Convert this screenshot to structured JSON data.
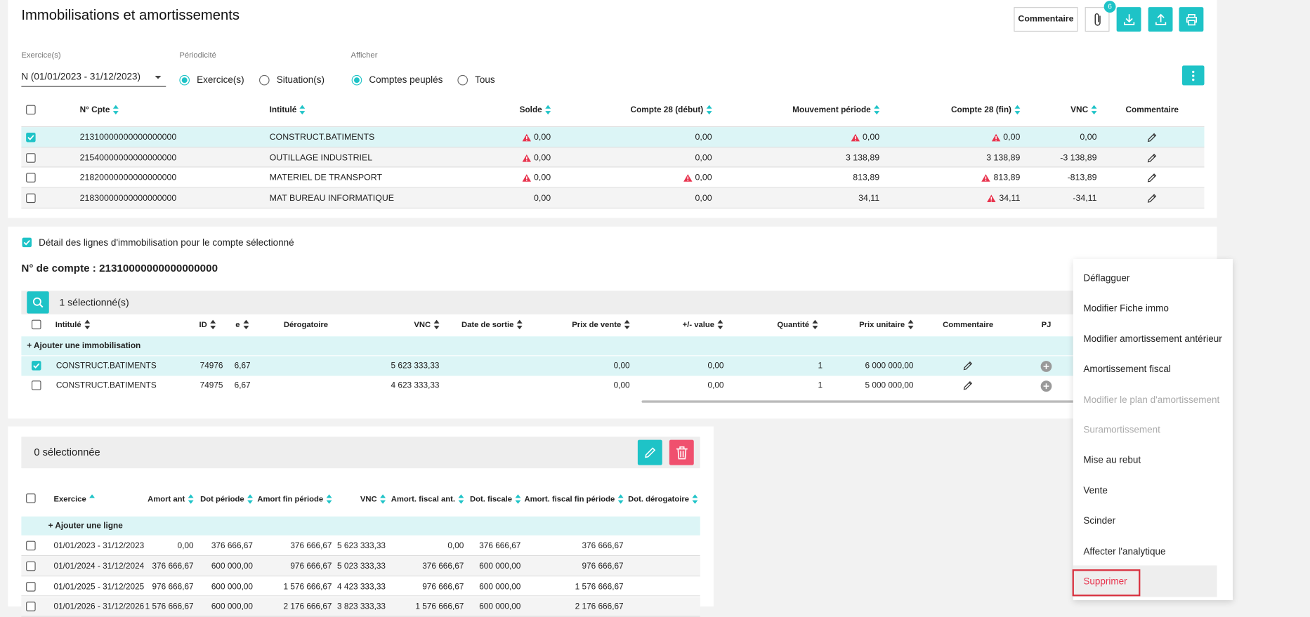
{
  "header": {
    "title": "Immobilisations et amortissements",
    "comment_button": "Commentaire",
    "attachments_count": 6
  },
  "filters": {
    "exercice": {
      "label": "Exercice(s)",
      "value": "N (01/01/2023 - 31/12/2023)"
    },
    "periodicite": {
      "label": "Périodicité",
      "options": [
        "Exercice(s)",
        "Situation(s)"
      ],
      "selected": 0
    },
    "afficher": {
      "label": "Afficher",
      "options": [
        "Comptes peuplés",
        "Tous"
      ],
      "selected": 0
    }
  },
  "accounts_table": {
    "columns": [
      "N° Cpte",
      "Intitulé",
      "Solde",
      "Compte 28 (début)",
      "Mouvement période",
      "Compte 28 (fin)",
      "VNC",
      "Commentaire"
    ],
    "selected_row": 0,
    "rows": [
      {
        "account": "21310000000000000000",
        "label": "CONSTRUCT.BATIMENTS",
        "amounts": [
          {
            "text": "0,00",
            "warning": true
          },
          {
            "text": "0,00",
            "warning": false
          },
          {
            "text": "0,00",
            "warning": true
          },
          {
            "text": "0,00",
            "warning": true
          },
          {
            "text": "0,00",
            "warning": false
          }
        ]
      },
      {
        "account": "21540000000000000000",
        "label": "OUTILLAGE INDUSTRIEL",
        "amounts": [
          {
            "text": "0,00",
            "warning": true
          },
          {
            "text": "0,00",
            "warning": false
          },
          {
            "text": "3 138,89",
            "warning": false
          },
          {
            "text": "3 138,89",
            "warning": false
          },
          {
            "text": "-3 138,89",
            "warning": false
          }
        ]
      },
      {
        "account": "21820000000000000000",
        "label": "MATERIEL DE TRANSPORT",
        "amounts": [
          {
            "text": "0,00",
            "warning": true
          },
          {
            "text": "0,00",
            "warning": true
          },
          {
            "text": "813,89",
            "warning": false
          },
          {
            "text": "813,89",
            "warning": true
          },
          {
            "text": "-813,89",
            "warning": false
          }
        ]
      },
      {
        "account": "21830000000000000000",
        "label": "MAT BUREAU INFORMATIQUE",
        "amounts": [
          {
            "text": "0,00",
            "warning": false
          },
          {
            "text": "0,00",
            "warning": false
          },
          {
            "text": "34,11",
            "warning": false
          },
          {
            "text": "34,11",
            "warning": true
          },
          {
            "text": "-34,11",
            "warning": false
          }
        ]
      }
    ]
  },
  "detail": {
    "checkbox_label": "Détail des lignes d'immobilisation pour le compte sélectionné",
    "account_title": "N° de compte : 21310000000000000000",
    "selection": "1 sélectionné(s)",
    "columns": [
      "Intitulé",
      "ID",
      "e",
      "Dérogatoire",
      "VNC",
      "Date de sortie",
      "Prix de vente",
      "+/- value",
      "Quantité",
      "Prix unitaire",
      "Commentaire",
      "PJ"
    ],
    "add_row": "+ Ajouter une immobilisation",
    "rows": [
      {
        "checked": true,
        "label": "CONSTRUCT.BATIMENTS",
        "id": "74976",
        "e": "6,67",
        "vnc": "5 623 333,33",
        "prix_vente": "0,00",
        "plus_value": "0,00",
        "quantite": "1",
        "prix_unitaire": "6 000 000,00"
      },
      {
        "checked": false,
        "label": "CONSTRUCT.BATIMENTS",
        "id": "74975",
        "e": "6,67",
        "vnc": "4 623 333,33",
        "prix_vente": "0,00",
        "plus_value": "0,00",
        "quantite": "1",
        "prix_unitaire": "5 000 000,00"
      }
    ]
  },
  "menu": {
    "items": [
      {
        "text": "Déflagguer",
        "disabled": false
      },
      {
        "text": "Modifier Fiche immo",
        "disabled": false
      },
      {
        "text": "Modifier amortissement antérieur",
        "disabled": false
      },
      {
        "text": "Amortissement fiscal",
        "disabled": false
      },
      {
        "text": "Modifier le plan d'amortissement",
        "disabled": true
      },
      {
        "text": "Suramortissement",
        "disabled": true
      },
      {
        "text": "Mise au rebut",
        "disabled": false
      },
      {
        "text": "Vente",
        "disabled": false
      },
      {
        "text": "Scinder",
        "disabled": false
      },
      {
        "text": "Affecter l'analytique",
        "disabled": false
      },
      {
        "text": "Supprimer",
        "disabled": false,
        "danger": true
      }
    ]
  },
  "schedule": {
    "selection": "0 sélectionnée",
    "columns": [
      "Exercice",
      "Amort ant",
      "Dot période",
      "Amort fin période",
      "VNC",
      "Amort. fiscal ant.",
      "Dot. fiscale",
      "Amort. fiscal fin période",
      "Dot. dérogatoire"
    ],
    "add_row": "+ Ajouter une ligne",
    "rows": [
      [
        "01/01/2023 - 31/12/2023",
        "0,00",
        "376 666,67",
        "376 666,67",
        "5 623 333,33",
        "0,00",
        "376 666,67",
        "376 666,67"
      ],
      [
        "01/01/2024 - 31/12/2024",
        "376 666,67",
        "600 000,00",
        "976 666,67",
        "5 023 333,33",
        "376 666,67",
        "600 000,00",
        "976 666,67"
      ],
      [
        "01/01/2025 - 31/12/2025",
        "976 666,67",
        "600 000,00",
        "1 576 666,67",
        "4 423 333,33",
        "976 666,67",
        "600 000,00",
        "1 576 666,67"
      ],
      [
        "01/01/2026 - 31/12/2026",
        "1 576 666,67",
        "600 000,00",
        "2 176 666,67",
        "3 823 333,33",
        "1 576 666,67",
        "600 000,00",
        "2 176 666,67"
      ]
    ]
  }
}
